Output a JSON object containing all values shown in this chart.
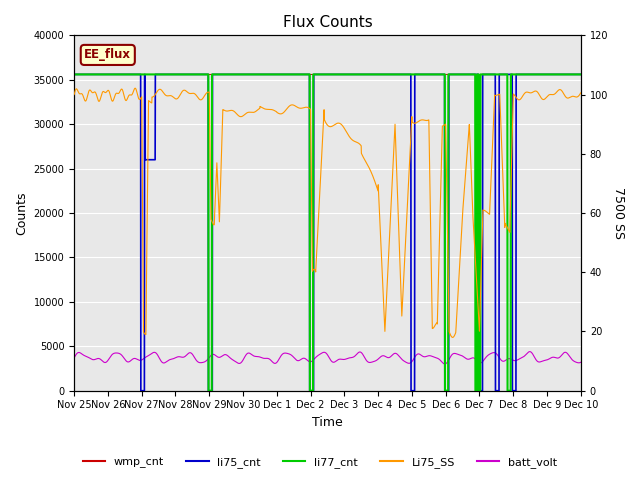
{
  "title": "Flux Counts",
  "xlabel": "Time",
  "ylabel_left": "Counts",
  "ylabel_right": "7500 SS",
  "annotation_text": "EE_flux",
  "ylim_left": [
    0,
    40000
  ],
  "ylim_right": [
    0,
    120
  ],
  "left_yticks": [
    0,
    5000,
    10000,
    15000,
    20000,
    25000,
    30000,
    35000,
    40000
  ],
  "right_yticks": [
    0,
    20,
    40,
    60,
    80,
    100,
    120
  ],
  "bg_color": "#e8e8e8",
  "fig_color": "#ffffff",
  "legend_entries": [
    "wmp_cnt",
    "li75_cnt",
    "li77_cnt",
    "Li75_SS",
    "batt_volt"
  ],
  "legend_colors": [
    "#cc0000",
    "#0000cc",
    "#00cc00",
    "#ff9900",
    "#cc00cc"
  ],
  "xtick_positions": [
    0,
    1,
    2,
    3,
    4,
    5,
    6,
    7,
    8,
    9,
    10,
    11,
    12,
    13,
    14,
    15
  ],
  "xtick_labels": [
    "Nov 25",
    "Nov 26",
    "Nov 27",
    "Nov 28",
    "Nov 29",
    "Nov 30",
    "Dec 1",
    "Dec 2",
    "Dec 3",
    "Dec 4",
    "Dec 5",
    "Dec 6",
    "Dec 7",
    "Dec 8",
    "Dec 9",
    "Dec 10"
  ],
  "title_fontsize": 11,
  "tick_fontsize": 7,
  "axis_label_fontsize": 9
}
